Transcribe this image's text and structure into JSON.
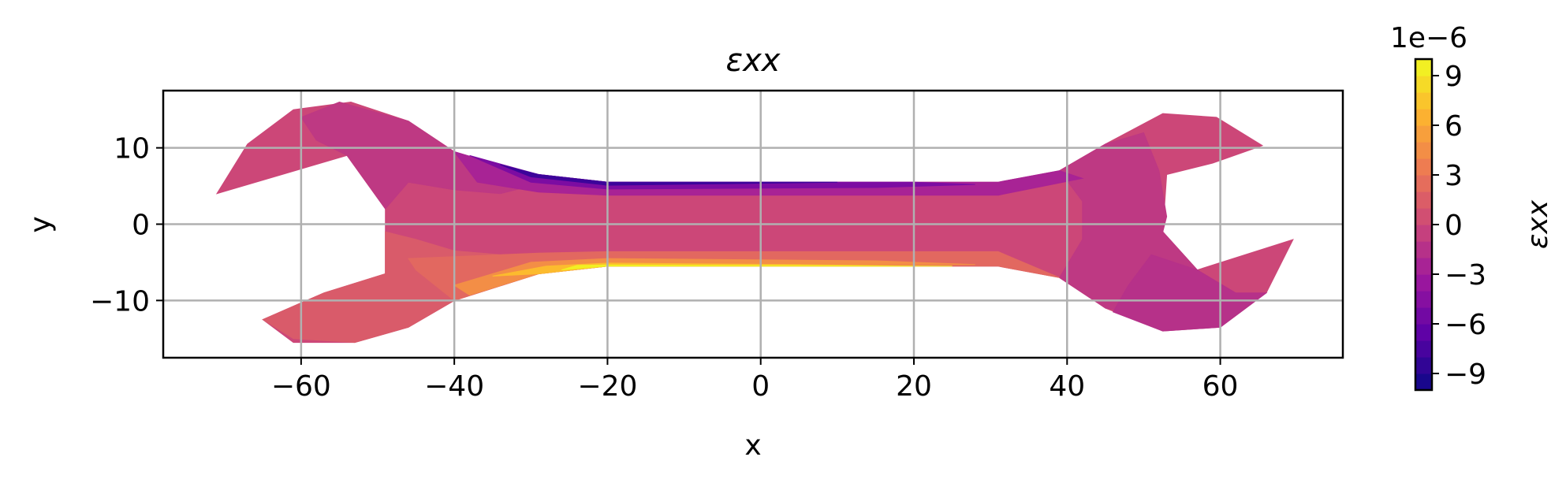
{
  "chart_data": {
    "type": "heatmap",
    "title": "εxx",
    "xlabel": "x",
    "ylabel": "y",
    "xlim": [
      -78,
      76
    ],
    "ylim": [
      -17.5,
      17.5
    ],
    "xticks": [
      -60,
      -40,
      -20,
      0,
      20,
      40,
      60
    ],
    "xtick_labels": [
      "−60",
      "−40",
      "−20",
      "0",
      "20",
      "40",
      "60"
    ],
    "yticks": [
      -10,
      0,
      10
    ],
    "ytick_labels": [
      "−10",
      "0",
      "10"
    ],
    "grid": true,
    "colorbar": {
      "label": "εxx",
      "offset_text": "1e−6",
      "range": [
        -10,
        10
      ],
      "ticks": [
        9,
        6,
        3,
        0,
        -3,
        -6,
        -9
      ],
      "tick_labels": [
        "9",
        "6",
        "3",
        "0",
        "−3",
        "−6",
        "−9"
      ],
      "colormap": "plasma",
      "colors": [
        "#0d0887",
        "#5c01a6",
        "#9c179e",
        "#cc4778",
        "#ed7953",
        "#fdb42f",
        "#f0f921"
      ]
    },
    "regions": [
      {
        "name": "outer-body",
        "value": 0.0,
        "polygon": [
          [
            -71,
            4
          ],
          [
            -67,
            10.5
          ],
          [
            -61,
            15
          ],
          [
            -53.5,
            16
          ],
          [
            -46,
            13.5
          ],
          [
            -40,
            9.5
          ],
          [
            -35,
            8
          ],
          [
            -29,
            6.5
          ],
          [
            -20,
            5.5
          ],
          [
            31,
            5.5
          ],
          [
            39,
            7
          ],
          [
            45,
            10.5
          ],
          [
            52.5,
            14.5
          ],
          [
            59.5,
            14
          ],
          [
            65.5,
            10.3
          ],
          [
            59,
            8
          ],
          [
            53,
            6.5
          ],
          [
            52.5,
            -1
          ],
          [
            57,
            -6
          ],
          [
            69.5,
            -2
          ],
          [
            66,
            -9
          ],
          [
            60,
            -13.5
          ],
          [
            52.5,
            -14
          ],
          [
            45,
            -11
          ],
          [
            39,
            -7
          ],
          [
            31,
            -5.5
          ],
          [
            -20,
            -5.5
          ],
          [
            -29,
            -6.5
          ],
          [
            -40,
            -10
          ],
          [
            -46,
            -13.5
          ],
          [
            -53,
            -15.5
          ],
          [
            -61,
            -15.5
          ],
          [
            -65,
            -12.5
          ],
          [
            -57,
            -9
          ],
          [
            -49,
            -6.5
          ],
          [
            -49,
            2
          ],
          [
            -54,
            9
          ]
        ]
      },
      {
        "name": "left-head",
        "value": -1.0,
        "polygon": [
          [
            -55,
            16
          ],
          [
            -46,
            13.5
          ],
          [
            -40,
            9.5
          ],
          [
            -35,
            7
          ],
          [
            -30,
            5
          ],
          [
            -34,
            4
          ],
          [
            -40,
            4.5
          ],
          [
            -46,
            5.5
          ],
          [
            -49,
            2
          ],
          [
            -54,
            9
          ],
          [
            -58,
            11
          ],
          [
            -60,
            14
          ]
        ]
      },
      {
        "name": "left-head-lower",
        "value": 1.3,
        "polygon": [
          [
            -49,
            -1
          ],
          [
            -49,
            -6.5
          ],
          [
            -57,
            -9
          ],
          [
            -65,
            -12.5
          ],
          [
            -61,
            -15
          ],
          [
            -53,
            -15.5
          ],
          [
            -46,
            -13.5
          ],
          [
            -40,
            -10
          ],
          [
            -35,
            -8
          ],
          [
            -29,
            -6
          ],
          [
            -34,
            -4
          ],
          [
            -40,
            -3.5
          ],
          [
            -45,
            -2
          ]
        ]
      },
      {
        "name": "right-head",
        "value": -1.0,
        "polygon": [
          [
            39,
            7
          ],
          [
            45,
            10.5
          ],
          [
            50,
            12
          ],
          [
            52,
            7
          ],
          [
            53,
            1
          ],
          [
            52.5,
            -1
          ],
          [
            57,
            -6
          ],
          [
            56,
            -9
          ],
          [
            51,
            -12
          ],
          [
            45,
            -11
          ],
          [
            39,
            -7
          ],
          [
            42,
            -2
          ],
          [
            42,
            3
          ]
        ]
      },
      {
        "name": "right-head-lower",
        "value": -1.5,
        "polygon": [
          [
            51,
            -4
          ],
          [
            57,
            -6
          ],
          [
            62,
            -9
          ],
          [
            66,
            -9
          ],
          [
            60,
            -13.5
          ],
          [
            52.5,
            -14
          ],
          [
            46,
            -11.5
          ],
          [
            48,
            -8
          ]
        ]
      },
      {
        "name": "top-edge-1",
        "value": -2.5,
        "polygon": [
          [
            -40,
            9.5
          ],
          [
            -35,
            8
          ],
          [
            -29,
            6.5
          ],
          [
            -20,
            5.5
          ],
          [
            31,
            5.5
          ],
          [
            39,
            7
          ],
          [
            42,
            6
          ],
          [
            31,
            3.8
          ],
          [
            -20,
            3.8
          ],
          [
            -29,
            4.2
          ],
          [
            -37,
            5.5
          ]
        ]
      },
      {
        "name": "top-edge-2",
        "value": -5.0,
        "polygon": [
          [
            -38,
            9
          ],
          [
            -29,
            6.5
          ],
          [
            -20,
            5.5
          ],
          [
            20,
            5.5
          ],
          [
            28,
            5.2
          ],
          [
            15,
            4.8
          ],
          [
            -20,
            4.6
          ],
          [
            -30,
            5.5
          ]
        ]
      },
      {
        "name": "top-edge-3",
        "value": -8.0,
        "polygon": [
          [
            -34,
            7.8
          ],
          [
            -29,
            6.5
          ],
          [
            -20,
            5.5
          ],
          [
            10,
            5.5
          ],
          [
            -5,
            5.3
          ],
          [
            -20,
            5.1
          ],
          [
            -30,
            6.2
          ]
        ]
      },
      {
        "name": "bottom-edge-1",
        "value": 2.2,
        "polygon": [
          [
            -46,
            -4.5
          ],
          [
            -29,
            -3.8
          ],
          [
            -20,
            -3.6
          ],
          [
            31,
            -3.6
          ],
          [
            39,
            -7
          ],
          [
            31,
            -5.5
          ],
          [
            -20,
            -5.5
          ],
          [
            -29,
            -6.5
          ],
          [
            -40,
            -10
          ],
          [
            -45,
            -6
          ]
        ]
      },
      {
        "name": "bottom-edge-2",
        "value": 4.5,
        "polygon": [
          [
            -40,
            -8
          ],
          [
            -30,
            -5
          ],
          [
            -20,
            -4.5
          ],
          [
            15,
            -4.8
          ],
          [
            28,
            -5.3
          ],
          [
            -20,
            -5.5
          ],
          [
            -29,
            -6.5
          ],
          [
            -38,
            -9.3
          ]
        ]
      },
      {
        "name": "bottom-edge-3",
        "value": 7.0,
        "polygon": [
          [
            -35,
            -6.8
          ],
          [
            -28,
            -5.5
          ],
          [
            -20,
            -5.1
          ],
          [
            5,
            -5.3
          ],
          [
            20,
            -5.5
          ],
          [
            -20,
            -5.5
          ],
          [
            -29,
            -6.5
          ]
        ]
      },
      {
        "name": "bottom-edge-4",
        "value": 9.5,
        "polygon": [
          [
            -24,
            -5.4
          ],
          [
            -20,
            -5.35
          ],
          [
            10,
            -5.45
          ],
          [
            25,
            -5.5
          ],
          [
            -20,
            -5.5
          ],
          [
            -26,
            -6.0
          ]
        ]
      }
    ]
  }
}
